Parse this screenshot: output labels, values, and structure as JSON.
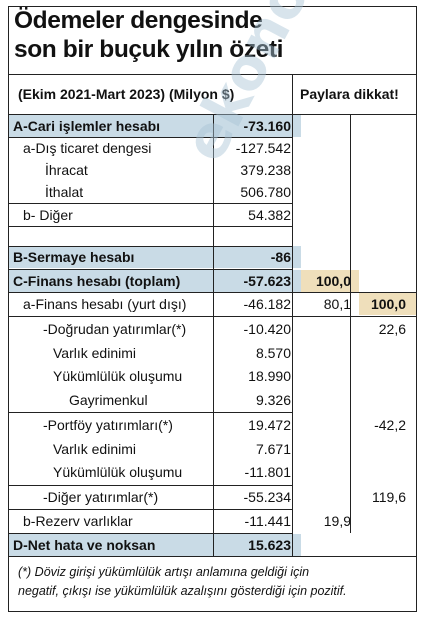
{
  "title": {
    "line1": "Ödemeler dengesinde",
    "line2": "son bir buçuk yılın özeti"
  },
  "header": {
    "period": "(Ekim 2021-Mart 2023) (Milyon $)",
    "note": "Paylara dikkat!"
  },
  "watermark": "ekonomi",
  "rows": [
    {
      "label": "A-Cari işlemler hesabı",
      "value": "-73.160",
      "share1": "",
      "share2": ""
    },
    {
      "label": "a-Dış ticaret dengesi",
      "value": "-127.542",
      "share1": "",
      "share2": ""
    },
    {
      "label": "İhracat",
      "value": "379.238",
      "share1": "",
      "share2": ""
    },
    {
      "label": "İthalat",
      "value": "506.780",
      "share1": "",
      "share2": ""
    },
    {
      "label": "b- Diğer",
      "value": "54.382",
      "share1": "",
      "share2": ""
    },
    {
      "label": "",
      "value": "",
      "share1": "",
      "share2": ""
    },
    {
      "label": "B-Sermaye hesabı",
      "value": "-86",
      "share1": "",
      "share2": ""
    },
    {
      "label": "C-Finans hesabı (toplam)",
      "value": "-57.623",
      "share1": "100,0",
      "share2": ""
    },
    {
      "label": "a-Finans hesabı (yurt dışı)",
      "value": "-46.182",
      "share1": "80,1",
      "share2": "100,0"
    },
    {
      "label": "-Doğrudan yatırımlar(*)",
      "value": "-10.420",
      "share1": "",
      "share2": "22,6"
    },
    {
      "label": "Varlık edinimi",
      "value": "8.570",
      "share1": "",
      "share2": ""
    },
    {
      "label": "Yükümlülük oluşumu",
      "value": "18.990",
      "share1": "",
      "share2": ""
    },
    {
      "label": "Gayrimenkul",
      "value": "9.326",
      "share1": "",
      "share2": ""
    },
    {
      "label": "-Portföy yatırımları(*)",
      "value": "19.472",
      "share1": "",
      "share2": "-42,2"
    },
    {
      "label": "Varlık edinimi",
      "value": "7.671",
      "share1": "",
      "share2": ""
    },
    {
      "label": "Yükümlülük oluşumu",
      "value": "-11.801",
      "share1": "",
      "share2": ""
    },
    {
      "label": "-Diğer yatırımlar(*)",
      "value": "-55.234",
      "share1": "",
      "share2": "119,6"
    },
    {
      "label": "b-Rezerv varlıklar",
      "value": "-11.441",
      "share1": "19,9",
      "share2": ""
    },
    {
      "label": "D-Net hata ve noksan",
      "value": "15.623",
      "share1": "",
      "share2": ""
    }
  ],
  "footnote": {
    "line1": "(*) Döviz girişi yükümlülük artışı anlamına geldiği için",
    "line2": "negatif, çıkışı ise yükümlülük azalışını gösterdiği için pozitif."
  },
  "colors": {
    "highlight_blue": "#c9dbe6",
    "highlight_beige": "#efdfbb",
    "watermark": "#a9c4d6"
  }
}
